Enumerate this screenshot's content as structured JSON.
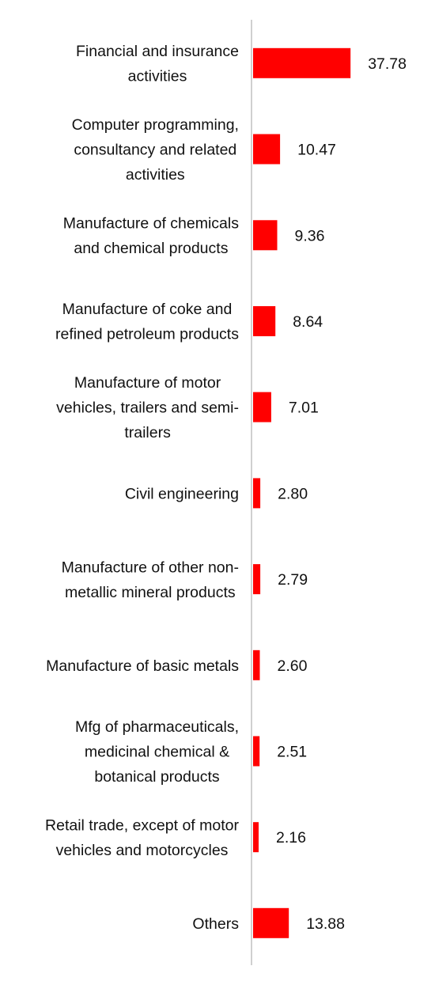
{
  "chart_data": {
    "type": "bar",
    "orientation": "horizontal",
    "title": "",
    "xlabel": "",
    "ylabel": "",
    "grid": false,
    "legend": "none",
    "bar_color": "#ff0000",
    "axis_color": "#d0d0d0",
    "categories": [
      [
        "Financial and insurance",
        "activities"
      ],
      [
        "Computer programming,",
        "consultancy and related",
        "activities"
      ],
      [
        "Manufacture of chemicals",
        "and chemical products"
      ],
      [
        "Manufacture of coke and",
        "refined petroleum products"
      ],
      [
        "Manufacture of motor",
        "vehicles, trailers and semi-",
        "trailers"
      ],
      [
        "Civil engineering"
      ],
      [
        "Manufacture of other non-",
        "metallic mineral products"
      ],
      [
        "Manufacture of basic metals"
      ],
      [
        "Mfg of pharmaceuticals,",
        "medicinal chemical &",
        "botanical products"
      ],
      [
        "Retail trade, except of motor",
        "vehicles and motorcycles"
      ],
      [
        "Others"
      ]
    ],
    "values": [
      37.78,
      10.47,
      9.36,
      8.64,
      7.01,
      2.8,
      2.79,
      2.6,
      2.51,
      2.16,
      13.88
    ],
    "value_labels": [
      "37.78",
      "10.47",
      "9.36",
      "8.64",
      "7.01",
      "2.80",
      "2.79",
      "2.60",
      "2.51",
      "2.16",
      "13.88"
    ]
  }
}
